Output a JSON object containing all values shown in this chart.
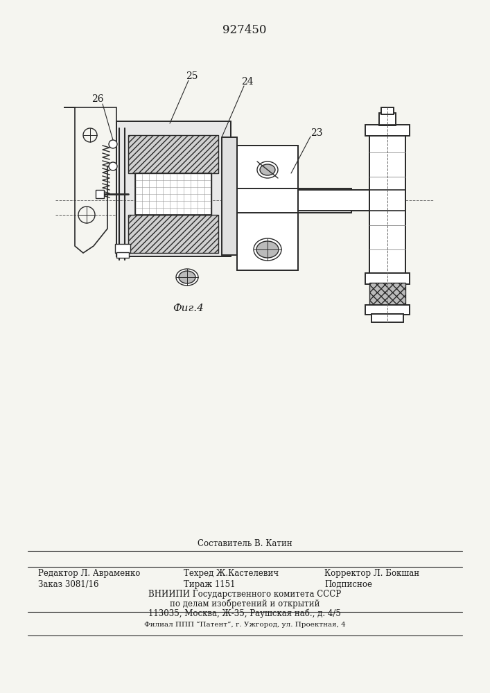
{
  "patent_number": "927450",
  "fig_caption": "Фиг.4",
  "footer_line1_center": "Составитель В. Катин",
  "footer_line2_left": "Редактор Л. Авраменко",
  "footer_line2_center": "Техред Ж.Кастелевич",
  "footer_line2_right": "Корректор Л. Бокшан",
  "footer_line3_left": "Заказ 3081/16",
  "footer_line3_center": "Тираж 1151",
  "footer_line3_right": "Подписное",
  "footer_line4": "ВНИИПИ Государственного комитета СССР",
  "footer_line5": "по делам изобретений и открытий",
  "footer_line6": "113035, Москва, Ж-35, Раушская наб., д. 4/5",
  "footer_line7": "Филиал ППП “Патент”, г. Ужгород, ул. Проектная, 4",
  "bg_color": "#f5f5f0",
  "text_color": "#1a1a1a",
  "line_color": "#2a2a2a",
  "label_23": "23",
  "label_24": "24",
  "label_25": "25",
  "label_26": "26"
}
